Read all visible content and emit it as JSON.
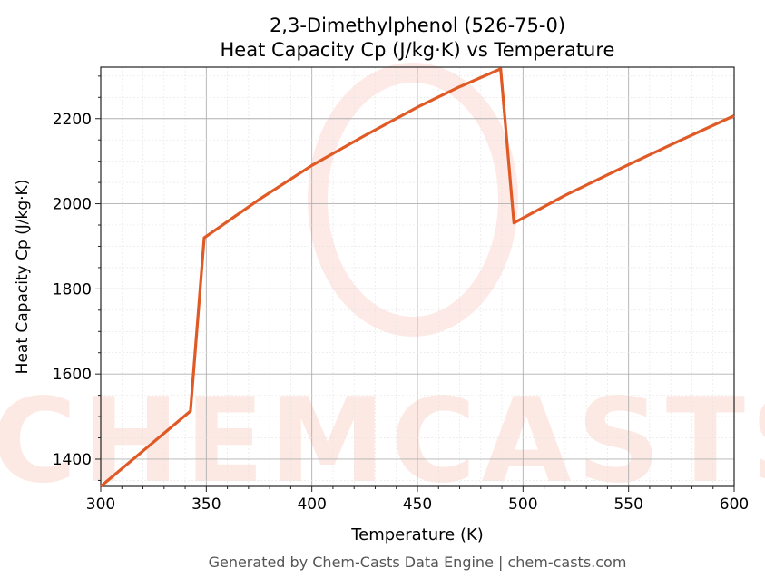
{
  "chart_data": {
    "type": "line",
    "title": "2,3-Dimethylphenol (526-75-0)",
    "subtitle": "Heat Capacity Cp (J/kg·K) vs Temperature",
    "xlabel": "Temperature (K)",
    "ylabel": "Heat Capacity Cp (J/kg·K)",
    "xlim": [
      300,
      600
    ],
    "ylim": [
      1336,
      2321
    ],
    "xticks": [
      300,
      350,
      400,
      450,
      500,
      550,
      600
    ],
    "yticks": [
      1400,
      1600,
      1800,
      2000,
      2200
    ],
    "grid": true,
    "line_color": "#e05a26",
    "series": [
      {
        "x": [
          300,
          342.5,
          349,
          375,
          400,
          425,
          450,
          470,
          489.4,
          495.7,
          520,
          550,
          575,
          600
        ],
        "y": [
          1336,
          1513,
          1920,
          2010,
          2090,
          2160,
          2227,
          2275,
          2317,
          1955,
          2020,
          2092,
          2150,
          2207
        ]
      }
    ],
    "watermark": "CHEMCASTS",
    "footer": "Generated by Chem-Casts Data Engine | chem-casts.com"
  }
}
